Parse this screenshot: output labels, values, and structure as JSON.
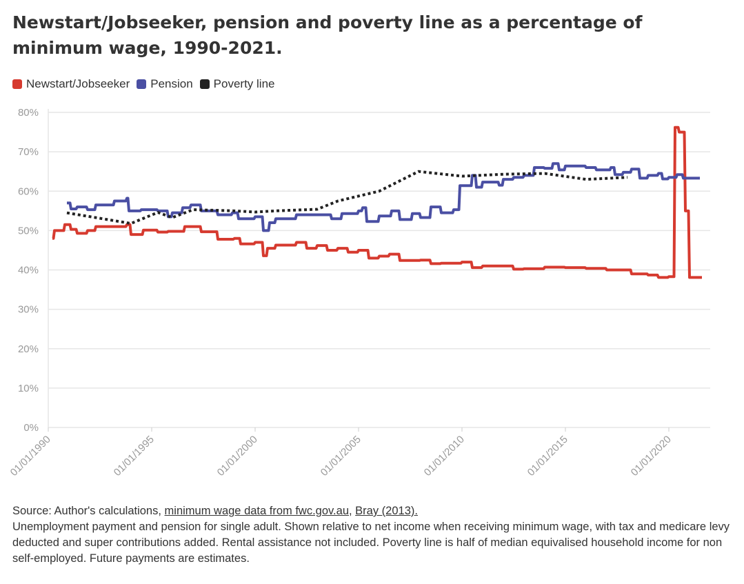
{
  "title": "Newstart/Jobseeker, pension and poverty line as a percentage of minimum wage, 1990-2021.",
  "chart_data": {
    "type": "line",
    "title": "Newstart/Jobseeker, pension and poverty line as a percentage of minimum wage, 1990-2021.",
    "xlabel": "",
    "ylabel": "",
    "xlim": [
      1990,
      2022
    ],
    "ylim": [
      0,
      80
    ],
    "yticks": [
      0,
      10,
      20,
      30,
      40,
      50,
      60,
      70,
      80
    ],
    "ytick_labels": [
      "0%",
      "10%",
      "20%",
      "30%",
      "40%",
      "50%",
      "60%",
      "70%",
      "80%"
    ],
    "xticks": [
      1990,
      1995,
      2000,
      2005,
      2010,
      2015,
      2020
    ],
    "xtick_labels": [
      "01/01/1990",
      "01/01/1995",
      "01/01/2000",
      "01/01/2005",
      "01/01/2010",
      "01/01/2015",
      "01/01/2020"
    ],
    "grid": true,
    "legend_position": "top-left",
    "series": [
      {
        "name": "Newstart/Jobseeker",
        "color": "#d63a2f",
        "style": "step",
        "points": [
          [
            1990.2,
            48
          ],
          [
            1990.3,
            50
          ],
          [
            1990.8,
            51.5
          ],
          [
            1991.1,
            50.3
          ],
          [
            1991.4,
            49.3
          ],
          [
            1991.9,
            50
          ],
          [
            1992.3,
            51
          ],
          [
            1993.2,
            51
          ],
          [
            1993.8,
            51.5
          ],
          [
            1994.0,
            49
          ],
          [
            1994.6,
            50.1
          ],
          [
            1995.3,
            49.6
          ],
          [
            1995.8,
            49.8
          ],
          [
            1996.6,
            51
          ],
          [
            1997.4,
            49.7
          ],
          [
            1998.2,
            47.8
          ],
          [
            1999.0,
            48
          ],
          [
            1999.3,
            46.6
          ],
          [
            2000.0,
            47
          ],
          [
            2000.4,
            43.6
          ],
          [
            2000.6,
            45.5
          ],
          [
            2001.0,
            46.3
          ],
          [
            2002.0,
            47
          ],
          [
            2002.5,
            45.5
          ],
          [
            2003.0,
            46.2
          ],
          [
            2003.5,
            45
          ],
          [
            2004.0,
            45.5
          ],
          [
            2004.5,
            44.5
          ],
          [
            2005.0,
            45
          ],
          [
            2005.5,
            43
          ],
          [
            2006.0,
            43.5
          ],
          [
            2006.5,
            44
          ],
          [
            2007.0,
            42.4
          ],
          [
            2008.0,
            42.5
          ],
          [
            2008.5,
            41.6
          ],
          [
            2009.0,
            41.7
          ],
          [
            2010.0,
            42
          ],
          [
            2010.5,
            40.6
          ],
          [
            2011.0,
            41
          ],
          [
            2012.5,
            40.2
          ],
          [
            2013.0,
            40.3
          ],
          [
            2014.0,
            40.7
          ],
          [
            2015.0,
            40.6
          ],
          [
            2016.0,
            40.4
          ],
          [
            2017.0,
            40
          ],
          [
            2018.2,
            39
          ],
          [
            2019.0,
            38.7
          ],
          [
            2019.5,
            38.1
          ],
          [
            2020.0,
            38.3
          ],
          [
            2020.3,
            76.2
          ],
          [
            2020.5,
            75
          ],
          [
            2020.8,
            55
          ],
          [
            2021.0,
            38.1
          ],
          [
            2021.6,
            38.1
          ]
        ]
      },
      {
        "name": "Pension",
        "color": "#4a4fa3",
        "style": "step",
        "points": [
          [
            1990.9,
            57
          ],
          [
            1991.1,
            55.5
          ],
          [
            1991.4,
            56
          ],
          [
            1991.9,
            55.3
          ],
          [
            1992.3,
            56.5
          ],
          [
            1993.2,
            57.5
          ],
          [
            1993.8,
            58.2
          ],
          [
            1993.9,
            55
          ],
          [
            1994.5,
            55.3
          ],
          [
            1995.3,
            55
          ],
          [
            1995.8,
            53.5
          ],
          [
            1996.0,
            54.5
          ],
          [
            1996.5,
            55.8
          ],
          [
            1996.9,
            56.5
          ],
          [
            1997.4,
            55
          ],
          [
            1998.2,
            54
          ],
          [
            1998.9,
            54.5
          ],
          [
            1999.2,
            53
          ],
          [
            2000.0,
            53.5
          ],
          [
            2000.4,
            50
          ],
          [
            2000.7,
            52
          ],
          [
            2001.0,
            53
          ],
          [
            2002.0,
            54
          ],
          [
            2003.0,
            54
          ],
          [
            2003.7,
            53
          ],
          [
            2004.2,
            54.3
          ],
          [
            2005.0,
            55
          ],
          [
            2005.2,
            55.8
          ],
          [
            2005.4,
            52.3
          ],
          [
            2006.0,
            53.7
          ],
          [
            2006.6,
            55
          ],
          [
            2007.0,
            52.8
          ],
          [
            2007.6,
            54.3
          ],
          [
            2008.0,
            53.3
          ],
          [
            2008.5,
            56
          ],
          [
            2009.0,
            54.5
          ],
          [
            2009.6,
            55.3
          ],
          [
            2009.9,
            61.4
          ],
          [
            2010.5,
            64
          ],
          [
            2010.7,
            61
          ],
          [
            2011.0,
            62.3
          ],
          [
            2011.8,
            61.5
          ],
          [
            2012.0,
            63
          ],
          [
            2012.5,
            63.5
          ],
          [
            2013.0,
            64
          ],
          [
            2013.5,
            66
          ],
          [
            2014.0,
            65.8
          ],
          [
            2014.4,
            67
          ],
          [
            2014.7,
            65.4
          ],
          [
            2015.0,
            66.4
          ],
          [
            2016.0,
            66
          ],
          [
            2016.5,
            65.4
          ],
          [
            2017.2,
            66
          ],
          [
            2017.4,
            64.2
          ],
          [
            2017.8,
            64.8
          ],
          [
            2018.2,
            65.6
          ],
          [
            2018.6,
            63.3
          ],
          [
            2019.0,
            64
          ],
          [
            2019.5,
            64.5
          ],
          [
            2019.7,
            63.1
          ],
          [
            2020.0,
            63.5
          ],
          [
            2020.4,
            64.2
          ],
          [
            2020.7,
            63.3
          ],
          [
            2021.5,
            63.3
          ]
        ]
      },
      {
        "name": "Poverty line",
        "color": "#222222",
        "style": "dotted",
        "points": [
          [
            1990.9,
            54.5
          ],
          [
            1994.0,
            51.8
          ],
          [
            1995.3,
            54.6
          ],
          [
            1996.0,
            53.3
          ],
          [
            1997.0,
            55.3
          ],
          [
            1999.0,
            55
          ],
          [
            2000.0,
            54.7
          ],
          [
            2001.0,
            55
          ],
          [
            2003.0,
            55.4
          ],
          [
            2004.0,
            57.5
          ],
          [
            2006.0,
            60
          ],
          [
            2007.9,
            65
          ],
          [
            2010.0,
            63.8
          ],
          [
            2012.0,
            64.3
          ],
          [
            2014.0,
            64.5
          ],
          [
            2016.0,
            63
          ],
          [
            2018.0,
            63.5
          ]
        ]
      }
    ]
  },
  "footer": {
    "source_prefix": "Source: Author's calculations, ",
    "link1": "minimum wage data from fwc.gov.au",
    "sep": ", ",
    "link2": "Bray (2013).",
    "note": "Unemployment payment and pension for single adult. Shown relative to net income when receiving minimum wage, with tax and medicare levy deducted and super contributions added. Rental assistance not included. Poverty line is half of median equivalised household income for non self-employed. Future payments are estimates."
  }
}
